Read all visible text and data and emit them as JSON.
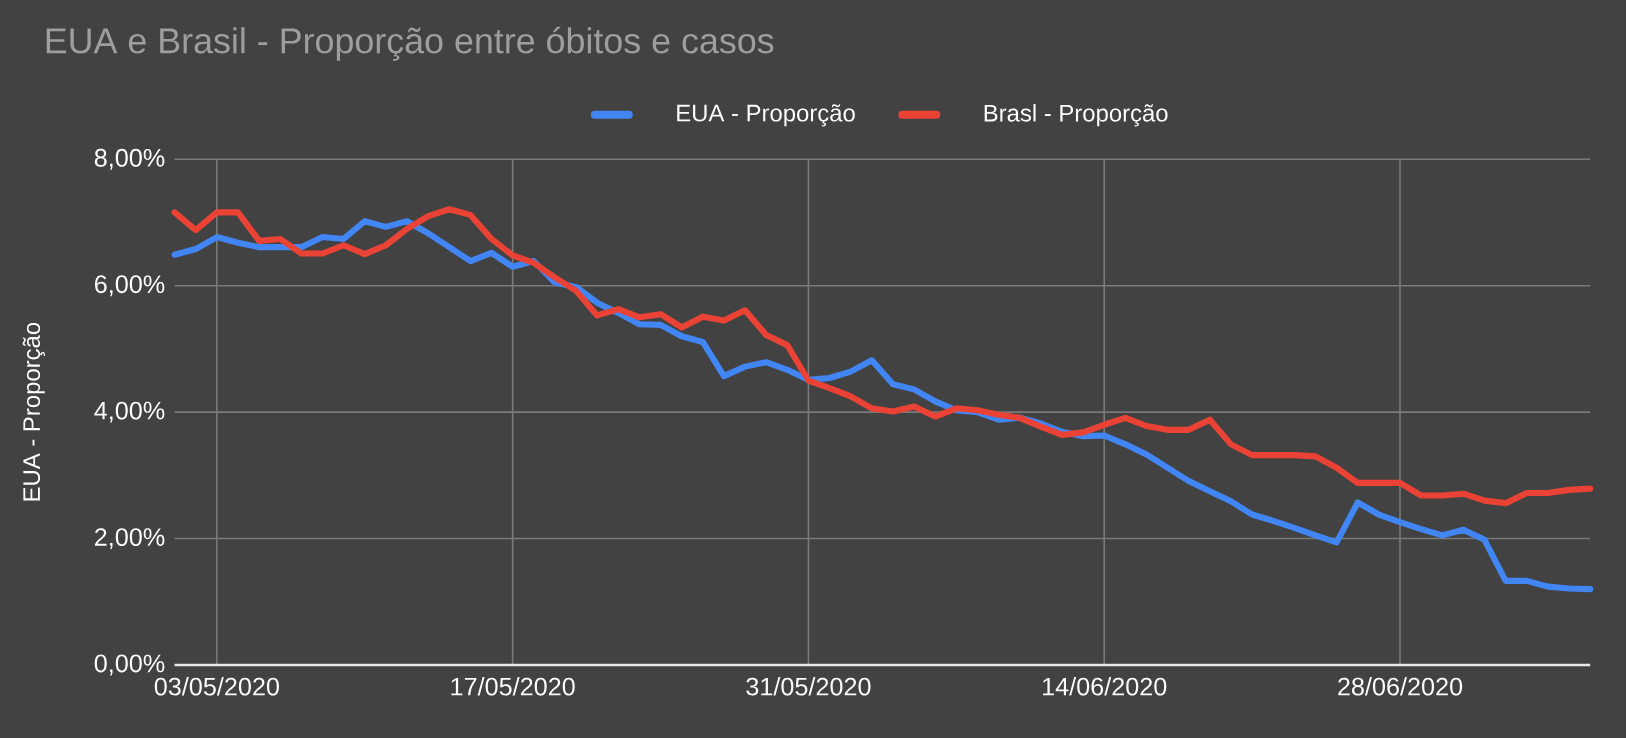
{
  "chart_data": {
    "type": "line",
    "title": "EUA e Brasil - Proporção entre óbitos e casos",
    "ylabel": "EUA - Proporção",
    "x": [
      "2020-05-01",
      "2020-05-02",
      "2020-05-03",
      "2020-05-04",
      "2020-05-05",
      "2020-05-06",
      "2020-05-07",
      "2020-05-08",
      "2020-05-09",
      "2020-05-10",
      "2020-05-11",
      "2020-05-12",
      "2020-05-13",
      "2020-05-14",
      "2020-05-15",
      "2020-05-16",
      "2020-05-17",
      "2020-05-18",
      "2020-05-19",
      "2020-05-20",
      "2020-05-21",
      "2020-05-22",
      "2020-05-23",
      "2020-05-24",
      "2020-05-25",
      "2020-05-26",
      "2020-05-27",
      "2020-05-28",
      "2020-05-29",
      "2020-05-30",
      "2020-05-31",
      "2020-06-01",
      "2020-06-02",
      "2020-06-03",
      "2020-06-04",
      "2020-06-05",
      "2020-06-06",
      "2020-06-07",
      "2020-06-08",
      "2020-06-09",
      "2020-06-10",
      "2020-06-11",
      "2020-06-12",
      "2020-06-13",
      "2020-06-14",
      "2020-06-15",
      "2020-06-16",
      "2020-06-17",
      "2020-06-18",
      "2020-06-19",
      "2020-06-20",
      "2020-06-21",
      "2020-06-22",
      "2020-06-23",
      "2020-06-24",
      "2020-06-25",
      "2020-06-26",
      "2020-06-27",
      "2020-06-28",
      "2020-06-29",
      "2020-06-30",
      "2020-07-01",
      "2020-07-02",
      "2020-07-03",
      "2020-07-04",
      "2020-07-05",
      "2020-07-06",
      "2020-07-07"
    ],
    "series": [
      {
        "name": "EUA - Proporção",
        "color": "#4285f4",
        "values": [
          6.49,
          6.58,
          6.77,
          6.68,
          6.61,
          6.61,
          6.61,
          6.77,
          6.74,
          7.02,
          6.93,
          7.02,
          6.83,
          6.61,
          6.39,
          6.52,
          6.3,
          6.39,
          6.05,
          5.98,
          5.73,
          5.57,
          5.39,
          5.38,
          5.2,
          5.11,
          4.57,
          4.72,
          4.79,
          4.67,
          4.51,
          4.54,
          4.64,
          4.82,
          4.44,
          4.36,
          4.17,
          4.03,
          4.0,
          3.88,
          3.91,
          3.82,
          3.69,
          3.62,
          3.63,
          3.49,
          3.33,
          3.12,
          2.91,
          2.75,
          2.59,
          2.38,
          2.28,
          2.17,
          2.05,
          1.94,
          2.57,
          2.38,
          2.26,
          2.15,
          2.05,
          2.14,
          1.98,
          1.33,
          1.33,
          1.24,
          1.21,
          1.2
        ]
      },
      {
        "name": "Brasl - Proporção",
        "color": "#ea4335",
        "values": [
          7.16,
          6.88,
          7.16,
          7.16,
          6.71,
          6.74,
          6.51,
          6.51,
          6.64,
          6.5,
          6.64,
          6.9,
          7.1,
          7.21,
          7.12,
          6.74,
          6.48,
          6.36,
          6.13,
          5.92,
          5.53,
          5.63,
          5.5,
          5.55,
          5.34,
          5.51,
          5.45,
          5.61,
          5.22,
          5.06,
          4.5,
          4.38,
          4.25,
          4.06,
          4.01,
          4.09,
          3.93,
          4.06,
          4.03,
          3.96,
          3.91,
          3.77,
          3.64,
          3.68,
          3.8,
          3.91,
          3.78,
          3.72,
          3.72,
          3.88,
          3.49,
          3.32,
          3.32,
          3.32,
          3.3,
          3.12,
          2.88,
          2.88,
          2.88,
          2.68,
          2.68,
          2.71,
          2.6,
          2.56,
          2.72,
          2.72,
          2.77,
          2.79
        ]
      }
    ],
    "xlim": [
      "2020-05-01",
      "2020-07-07"
    ],
    "xticks": [
      {
        "value": "2020-05-03",
        "label": "03/05/2020"
      },
      {
        "value": "2020-05-17",
        "label": "17/05/2020"
      },
      {
        "value": "2020-05-31",
        "label": "31/05/2020"
      },
      {
        "value": "2020-06-14",
        "label": "14/06/2020"
      },
      {
        "value": "2020-06-28",
        "label": "28/06/2020"
      }
    ],
    "ylim": [
      0,
      8
    ],
    "yticks": [
      {
        "value": 0,
        "label": "0,00%"
      },
      {
        "value": 2,
        "label": "2,00%"
      },
      {
        "value": 4,
        "label": "4,00%"
      },
      {
        "value": 6,
        "label": "6,00%"
      },
      {
        "value": 8,
        "label": "8,00%"
      }
    ],
    "grid": true,
    "legend": "top",
    "marker": "none",
    "line_style": "solid"
  }
}
